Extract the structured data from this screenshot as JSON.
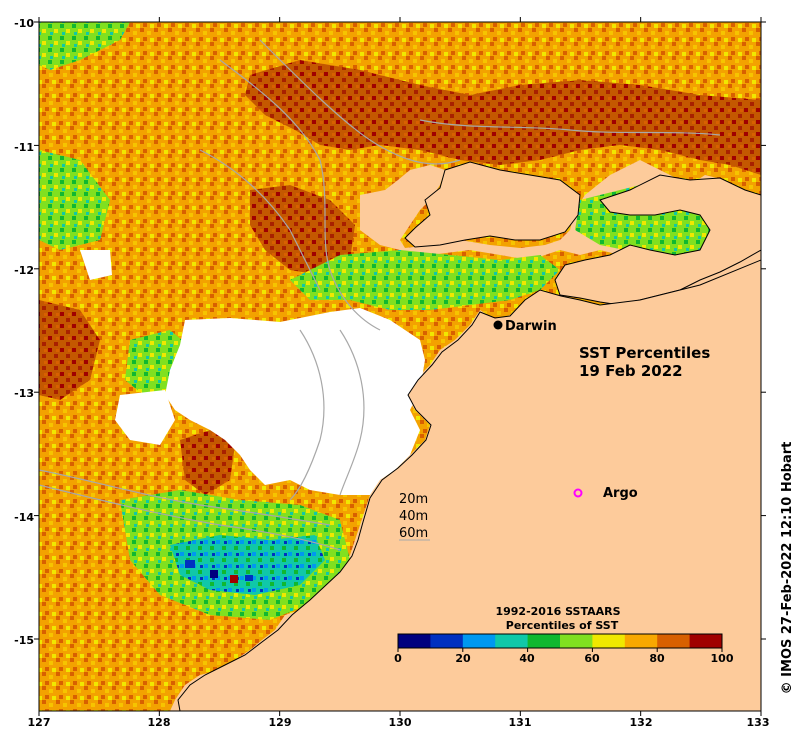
{
  "map": {
    "title_line1": "SST Percentiles",
    "title_line2": "19 Feb 2022",
    "credit": "© IMOS 27-Feb-2022 12:10 Hobart",
    "x_ticks": [
      "127",
      "128",
      "129",
      "130",
      "131",
      "132",
      "133"
    ],
    "y_ticks": [
      "-10",
      "-11",
      "-12",
      "-13",
      "-14",
      "-15"
    ],
    "places": [
      {
        "name": "Darwin",
        "symbol": "filled-circle",
        "lon": 130.83,
        "lat": -12.45
      }
    ],
    "argo": {
      "label": "Argo",
      "symbol": "open-circle",
      "color": "#ff00ff",
      "lon": 131.48,
      "lat": -13.82
    },
    "depth_legend": [
      "20m",
      "40m",
      "60m"
    ],
    "colors": {
      "land": "#fdcb9b",
      "no_data": "#ffffff",
      "coastline": "#000000",
      "contour": "#a8a8a8"
    }
  },
  "colorbar": {
    "title_line1": "1992-2016 SSTAARS",
    "title_line2": "Percentiles of SST",
    "tick_labels": [
      "0",
      "20",
      "40",
      "60",
      "80",
      "100"
    ],
    "colors": [
      "#00007f",
      "#0030c0",
      "#0098f0",
      "#10c8a8",
      "#10b830",
      "#80e020",
      "#f0e800",
      "#f8a800",
      "#d86000",
      "#a00000"
    ]
  }
}
